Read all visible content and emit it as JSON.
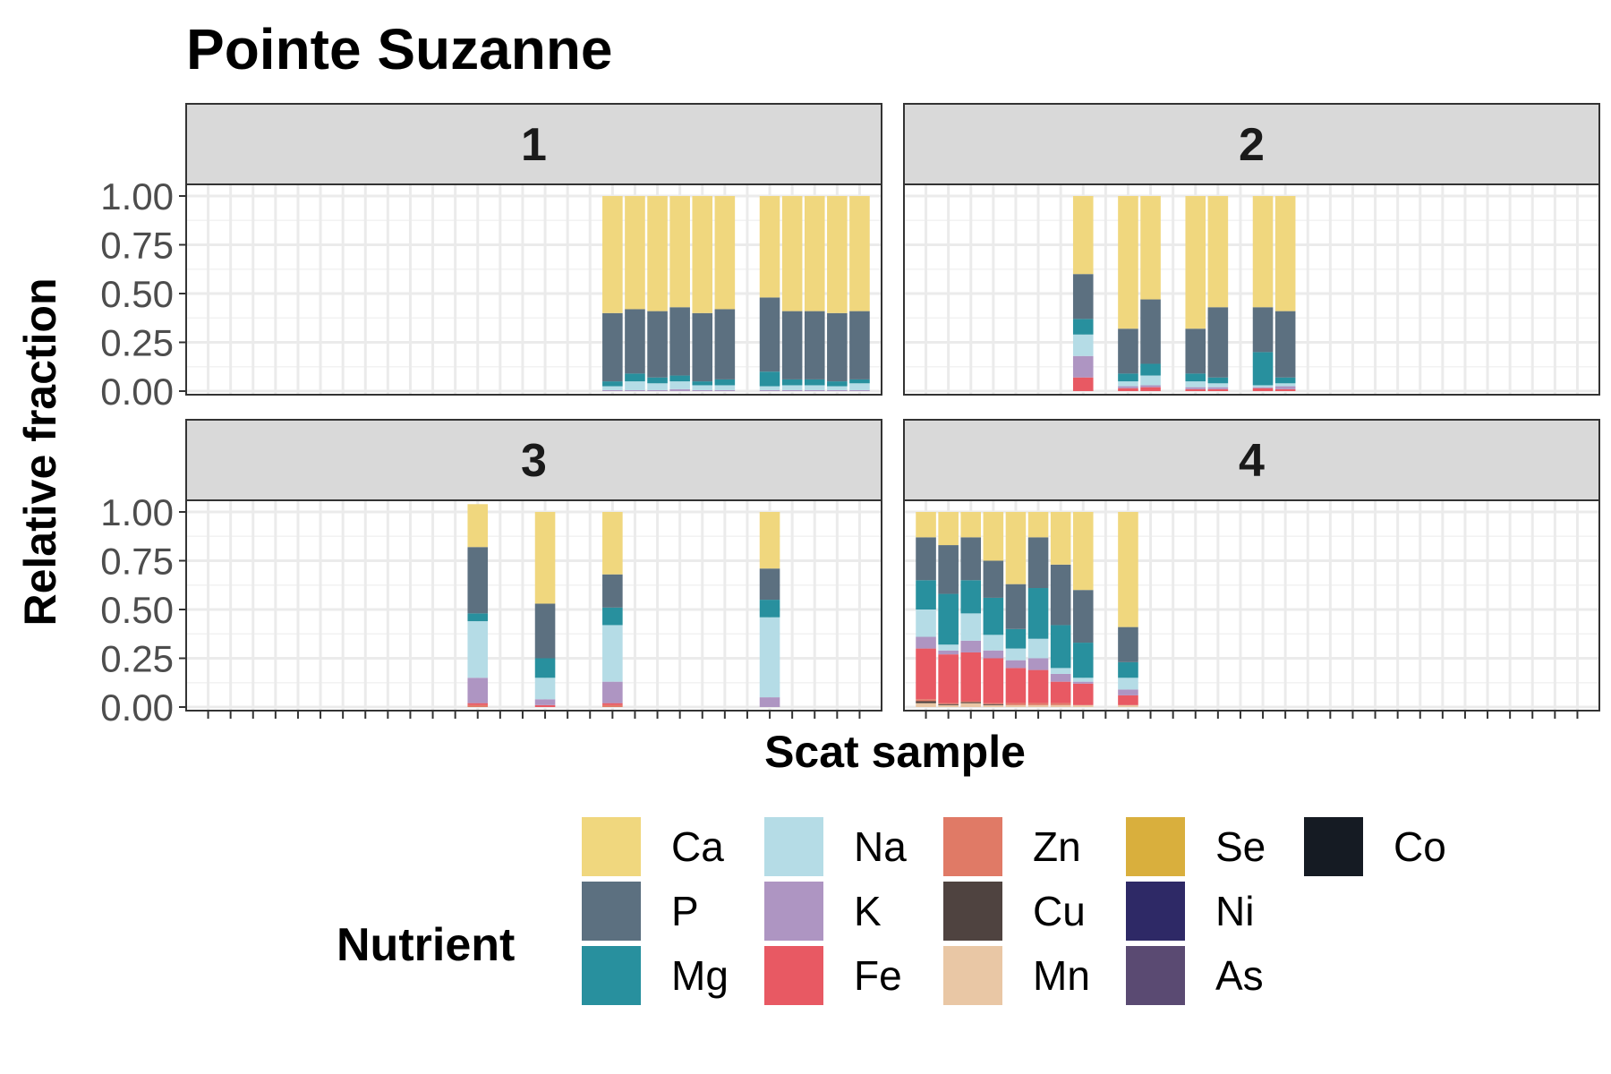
{
  "chart_data": {
    "type": "bar",
    "title": "Pointe Suzanne",
    "xlabel": "Scat sample",
    "ylabel": "Relative fraction",
    "ylim": [
      0,
      1
    ],
    "y_ticks": [
      "0.00",
      "0.25",
      "0.50",
      "0.75",
      "1.00"
    ],
    "y_tick_values": [
      0,
      0.25,
      0.5,
      0.75,
      1.0
    ],
    "grid": true,
    "stacked": true,
    "samples_per_panel": 30,
    "legend": {
      "title": "Nutrient",
      "placement": "bottom",
      "columns": [
        [
          "Ca",
          "P",
          "Mg"
        ],
        [
          "Na",
          "K",
          "Fe"
        ],
        [
          "Zn",
          "Cu",
          "Mn"
        ],
        [
          "Se",
          "Ni",
          "As"
        ],
        [
          "Co"
        ]
      ]
    },
    "nutrients": [
      "Ca",
      "P",
      "Mg",
      "Na",
      "K",
      "Fe",
      "Zn",
      "Cu",
      "Mn",
      "Se",
      "Ni",
      "As",
      "Co"
    ],
    "colors": {
      "Ca": "#F0D77E",
      "P": "#5C7080",
      "Mg": "#28909E",
      "Na": "#B5DCE6",
      "K": "#AE95C2",
      "Fe": "#E85963",
      "Zn": "#E07A66",
      "Cu": "#4F4340",
      "Mn": "#E9C7A5",
      "Se": "#D9AF3D",
      "Ni": "#2E2966",
      "As": "#5A4A72",
      "Co": "#151B23"
    },
    "stack_order_bottom_to_top": [
      "Co",
      "As",
      "Ni",
      "Se",
      "Mn",
      "Cu",
      "Zn",
      "Fe",
      "K",
      "Na",
      "Mg",
      "P",
      "Ca"
    ],
    "panels": [
      {
        "label": "1",
        "bars": [
          {
            "sample": 19,
            "Ca": 0.6,
            "P": 0.35,
            "Mg": 0.025,
            "Na": 0.02,
            "K": 0.005
          },
          {
            "sample": 20,
            "Ca": 0.58,
            "P": 0.33,
            "Mg": 0.04,
            "Na": 0.045,
            "K": 0.005
          },
          {
            "sample": 21,
            "Ca": 0.59,
            "P": 0.34,
            "Mg": 0.03,
            "Na": 0.035,
            "K": 0.005
          },
          {
            "sample": 22,
            "Ca": 0.57,
            "P": 0.35,
            "Mg": 0.03,
            "Na": 0.04,
            "K": 0.01
          },
          {
            "sample": 23,
            "Ca": 0.6,
            "P": 0.35,
            "Mg": 0.02,
            "Na": 0.025,
            "K": 0.005
          },
          {
            "sample": 24,
            "Ca": 0.58,
            "P": 0.36,
            "Mg": 0.03,
            "Na": 0.025,
            "K": 0.005
          },
          {
            "sample": 26,
            "Ca": 0.52,
            "P": 0.38,
            "Mg": 0.075,
            "Na": 0.02,
            "K": 0.005
          },
          {
            "sample": 27,
            "Ca": 0.59,
            "P": 0.35,
            "Mg": 0.03,
            "Na": 0.025,
            "K": 0.005
          },
          {
            "sample": 28,
            "Ca": 0.59,
            "P": 0.35,
            "Mg": 0.03,
            "Na": 0.025,
            "K": 0.005
          },
          {
            "sample": 29,
            "Ca": 0.6,
            "P": 0.35,
            "Mg": 0.025,
            "Na": 0.02,
            "K": 0.005
          },
          {
            "sample": 30,
            "Ca": 0.59,
            "P": 0.35,
            "Mg": 0.02,
            "Na": 0.035,
            "K": 0.005
          }
        ]
      },
      {
        "label": "2",
        "bars": [
          {
            "sample": 8,
            "Ca": 0.4,
            "P": 0.23,
            "Mg": 0.08,
            "Na": 0.11,
            "K": 0.11,
            "Fe": 0.07
          },
          {
            "sample": 10,
            "Ca": 0.68,
            "P": 0.23,
            "Mg": 0.04,
            "Na": 0.025,
            "K": 0.01,
            "Fe": 0.015
          },
          {
            "sample": 11,
            "Ca": 0.53,
            "P": 0.33,
            "Mg": 0.06,
            "Na": 0.05,
            "K": 0.01,
            "Fe": 0.02
          },
          {
            "sample": 13,
            "Ca": 0.68,
            "P": 0.23,
            "Mg": 0.04,
            "Na": 0.03,
            "K": 0.01,
            "Fe": 0.01
          },
          {
            "sample": 14,
            "Ca": 0.57,
            "P": 0.36,
            "Mg": 0.03,
            "Na": 0.02,
            "K": 0.01,
            "Fe": 0.01
          },
          {
            "sample": 16,
            "Ca": 0.57,
            "P": 0.23,
            "Mg": 0.17,
            "Na": 0.01,
            "K": 0.005,
            "Fe": 0.015
          },
          {
            "sample": 17,
            "Ca": 0.59,
            "P": 0.34,
            "Mg": 0.03,
            "Na": 0.015,
            "K": 0.015,
            "Fe": 0.01
          }
        ]
      },
      {
        "label": "3",
        "bars": [
          {
            "sample": 13,
            "Ca": 0.22,
            "P": 0.34,
            "Mg": 0.04,
            "Na": 0.29,
            "K": 0.13,
            "Fe": 0.01,
            "Zn": 0.01
          },
          {
            "sample": 16,
            "Ca": 0.47,
            "P": 0.28,
            "Mg": 0.1,
            "Na": 0.11,
            "K": 0.03,
            "Fe": 0.01
          },
          {
            "sample": 19,
            "Ca": 0.32,
            "P": 0.17,
            "Mg": 0.09,
            "Na": 0.29,
            "K": 0.11,
            "Fe": 0.01,
            "Zn": 0.01
          },
          {
            "sample": 26,
            "Ca": 0.29,
            "P": 0.16,
            "Mg": 0.09,
            "Na": 0.41,
            "K": 0.05
          }
        ]
      },
      {
        "label": "4",
        "bars": [
          {
            "sample": 1,
            "Ca": 0.13,
            "P": 0.22,
            "Mg": 0.15,
            "Na": 0.14,
            "K": 0.06,
            "Fe": 0.26,
            "Zn": 0.01,
            "Cu": 0.01,
            "Mn": 0.02
          },
          {
            "sample": 2,
            "Ca": 0.17,
            "P": 0.25,
            "Mg": 0.26,
            "Na": 0.03,
            "K": 0.02,
            "Fe": 0.25,
            "Zn": 0.005,
            "Cu": 0.005,
            "Mn": 0.01
          },
          {
            "sample": 3,
            "Ca": 0.13,
            "P": 0.22,
            "Mg": 0.17,
            "Na": 0.14,
            "K": 0.06,
            "Fe": 0.25,
            "Zn": 0.005,
            "Cu": 0.005,
            "Mn": 0.02
          },
          {
            "sample": 4,
            "Ca": 0.25,
            "P": 0.19,
            "Mg": 0.19,
            "Na": 0.08,
            "K": 0.04,
            "Fe": 0.23,
            "Zn": 0.005,
            "Cu": 0.005,
            "Mn": 0.01
          },
          {
            "sample": 5,
            "Ca": 0.37,
            "P": 0.23,
            "Mg": 0.1,
            "Na": 0.06,
            "K": 0.04,
            "Fe": 0.18,
            "Zn": 0.01,
            "Mn": 0.01
          },
          {
            "sample": 6,
            "Ca": 0.13,
            "P": 0.26,
            "Mg": 0.26,
            "Na": 0.1,
            "K": 0.06,
            "Fe": 0.17,
            "Zn": 0.01,
            "Mn": 0.01
          },
          {
            "sample": 7,
            "Ca": 0.27,
            "P": 0.31,
            "Mg": 0.22,
            "Na": 0.03,
            "K": 0.04,
            "Fe": 0.11,
            "Zn": 0.01,
            "Mn": 0.01
          },
          {
            "sample": 8,
            "Ca": 0.4,
            "P": 0.27,
            "Mg": 0.18,
            "Na": 0.02,
            "K": 0.01,
            "Fe": 0.11,
            "Mn": 0.01
          },
          {
            "sample": 10,
            "Ca": 0.59,
            "P": 0.18,
            "Mg": 0.08,
            "Na": 0.06,
            "K": 0.03,
            "Fe": 0.05,
            "Mn": 0.01
          }
        ]
      }
    ]
  }
}
